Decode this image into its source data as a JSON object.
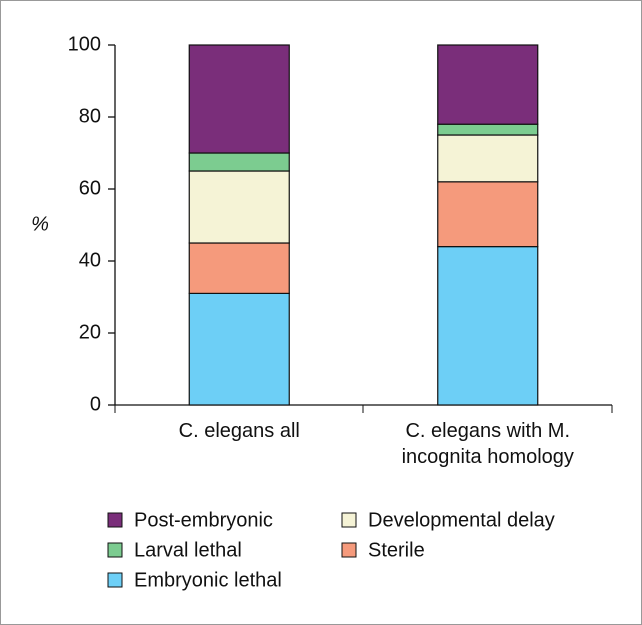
{
  "chart_data": {
    "type": "stacked_bar",
    "y_label": "%",
    "categories": [
      "C. elegans all",
      "C. elegans with M. incognita homology"
    ],
    "series": [
      {
        "name": "Embryonic lethal",
        "color": "#6dcff6",
        "values": [
          31,
          44
        ]
      },
      {
        "name": "Sterile",
        "color": "#f59a7c",
        "values": [
          14,
          18
        ]
      },
      {
        "name": "Developmental delay",
        "color": "#f5f3d6",
        "values": [
          20,
          13
        ]
      },
      {
        "name": "Larval lethal",
        "color": "#7ccc90",
        "values": [
          5,
          3
        ]
      },
      {
        "name": "Post-embryonic",
        "color": "#7a2e7a",
        "values": [
          30,
          22
        ]
      }
    ],
    "ylim": [
      0,
      100
    ],
    "yticks": [
      0,
      20,
      40,
      60,
      80,
      100
    ],
    "legend": "bottom"
  }
}
